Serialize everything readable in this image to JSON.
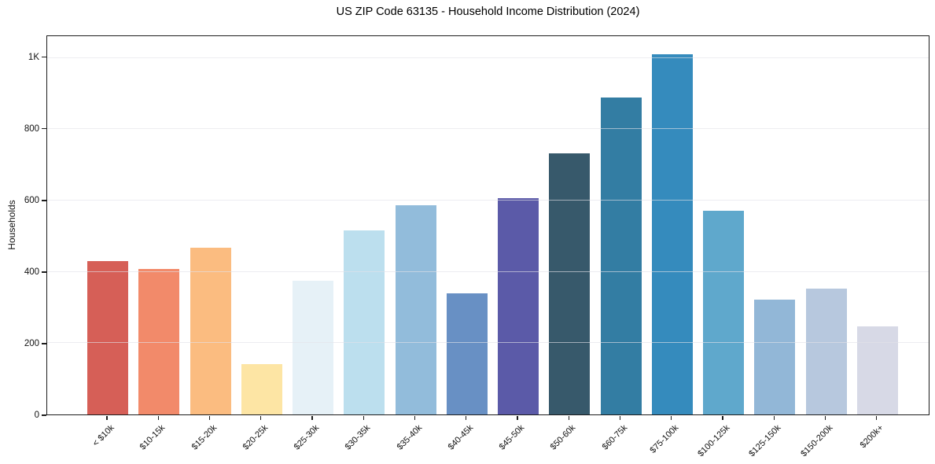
{
  "chart_data": {
    "type": "bar",
    "title": "US ZIP Code 63135 - Household Income Distribution (2024)",
    "ylabel": "Households",
    "xlabel": "",
    "categories": [
      "< $10k",
      "$10-15k",
      "$15-20k",
      "$20-25k",
      "$25-30k",
      "$30-35k",
      "$35-40k",
      "$40-45k",
      "$45-50k",
      "$50-60k",
      "$60-75k",
      "$75-100k",
      "$100-125k",
      "$125-150k",
      "$150-200k",
      "$200k+"
    ],
    "values": [
      430,
      408,
      468,
      141,
      374,
      516,
      586,
      340,
      607,
      733,
      890,
      1010,
      572,
      322,
      353,
      247
    ],
    "colors": [
      "#d65f57",
      "#f28a6a",
      "#fbbc80",
      "#fde5a4",
      "#e6f1f7",
      "#bcdfee",
      "#92bcdb",
      "#6890c4",
      "#5b5aa8",
      "#37596b",
      "#337da3",
      "#358bbd",
      "#5fa8cc",
      "#92b7d7",
      "#b7c8de",
      "#d7d9e6"
    ],
    "ylim": [
      0,
      1061
    ],
    "yticks": [
      {
        "value": 0,
        "label": "0"
      },
      {
        "value": 200,
        "label": "200"
      },
      {
        "value": 400,
        "label": "400"
      },
      {
        "value": 600,
        "label": "600"
      },
      {
        "value": 800,
        "label": "800"
      },
      {
        "value": 1000,
        "label": "1K"
      }
    ],
    "gridline_values": [
      200,
      400,
      600,
      800,
      1000
    ],
    "grid": "horizontal",
    "legend_position": "none",
    "background_color": "#ffffff",
    "spine_color": "#1c1c1c",
    "gridline_color": "#ececf0"
  }
}
